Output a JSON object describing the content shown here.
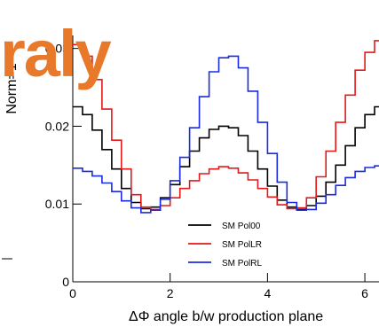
{
  "overlay_text": "raly",
  "chart_data": {
    "type": "line",
    "xlabel": "ΔΦ angle b/w production plane",
    "ylabel": "Norm=1",
    "xlim": [
      0,
      6.4
    ],
    "ylim": [
      0,
      0.036
    ],
    "x_ticks": [
      0,
      2,
      4,
      6
    ],
    "x_tick_labels": [
      "0",
      "2",
      "4",
      "6"
    ],
    "y_ticks": [
      0,
      0.01,
      0.02,
      0.03
    ],
    "y_tick_labels": [
      "0",
      "0.01",
      "0.02",
      "0.03"
    ],
    "legend_position": "bottom-center",
    "x": [
      0.1,
      0.3,
      0.5,
      0.7,
      0.9,
      1.1,
      1.3,
      1.5,
      1.7,
      1.9,
      2.1,
      2.3,
      2.5,
      2.7,
      2.9,
      3.1,
      3.3,
      3.5,
      3.7,
      3.9,
      4.1,
      4.3,
      4.5,
      4.7,
      4.9,
      5.1,
      5.3,
      5.5,
      5.7,
      5.9,
      6.1,
      6.3
    ],
    "series": [
      {
        "name": "SM Pol00",
        "color": "#000000",
        "values": [
          0.0225,
          0.0215,
          0.0195,
          0.017,
          0.0145,
          0.012,
          0.0102,
          0.0094,
          0.0096,
          0.0108,
          0.0125,
          0.0148,
          0.0168,
          0.0185,
          0.0196,
          0.02,
          0.0198,
          0.0188,
          0.0168,
          0.0145,
          0.0123,
          0.0105,
          0.0096,
          0.0093,
          0.0098,
          0.011,
          0.0128,
          0.015,
          0.0175,
          0.0198,
          0.0215,
          0.0225
        ]
      },
      {
        "name": "SM PolLR",
        "color": "#e41a1a",
        "values": [
          0.0305,
          0.029,
          0.026,
          0.0222,
          0.0182,
          0.0145,
          0.0112,
          0.0096,
          0.0093,
          0.0098,
          0.0108,
          0.012,
          0.013,
          0.0139,
          0.0145,
          0.0148,
          0.0146,
          0.014,
          0.0131,
          0.012,
          0.0109,
          0.0099,
          0.0094,
          0.0095,
          0.0108,
          0.0135,
          0.0168,
          0.0205,
          0.024,
          0.0272,
          0.0295,
          0.031
        ]
      },
      {
        "name": "SM PolRL",
        "color": "#1a2be4",
        "values": [
          0.0146,
          0.0142,
          0.0136,
          0.0127,
          0.0116,
          0.0104,
          0.0095,
          0.0089,
          0.0092,
          0.0106,
          0.013,
          0.016,
          0.0198,
          0.0238,
          0.027,
          0.0288,
          0.029,
          0.0275,
          0.0245,
          0.0205,
          0.0165,
          0.0128,
          0.0102,
          0.0092,
          0.0093,
          0.0101,
          0.0112,
          0.0124,
          0.0134,
          0.0142,
          0.0147,
          0.0149
        ]
      }
    ]
  }
}
